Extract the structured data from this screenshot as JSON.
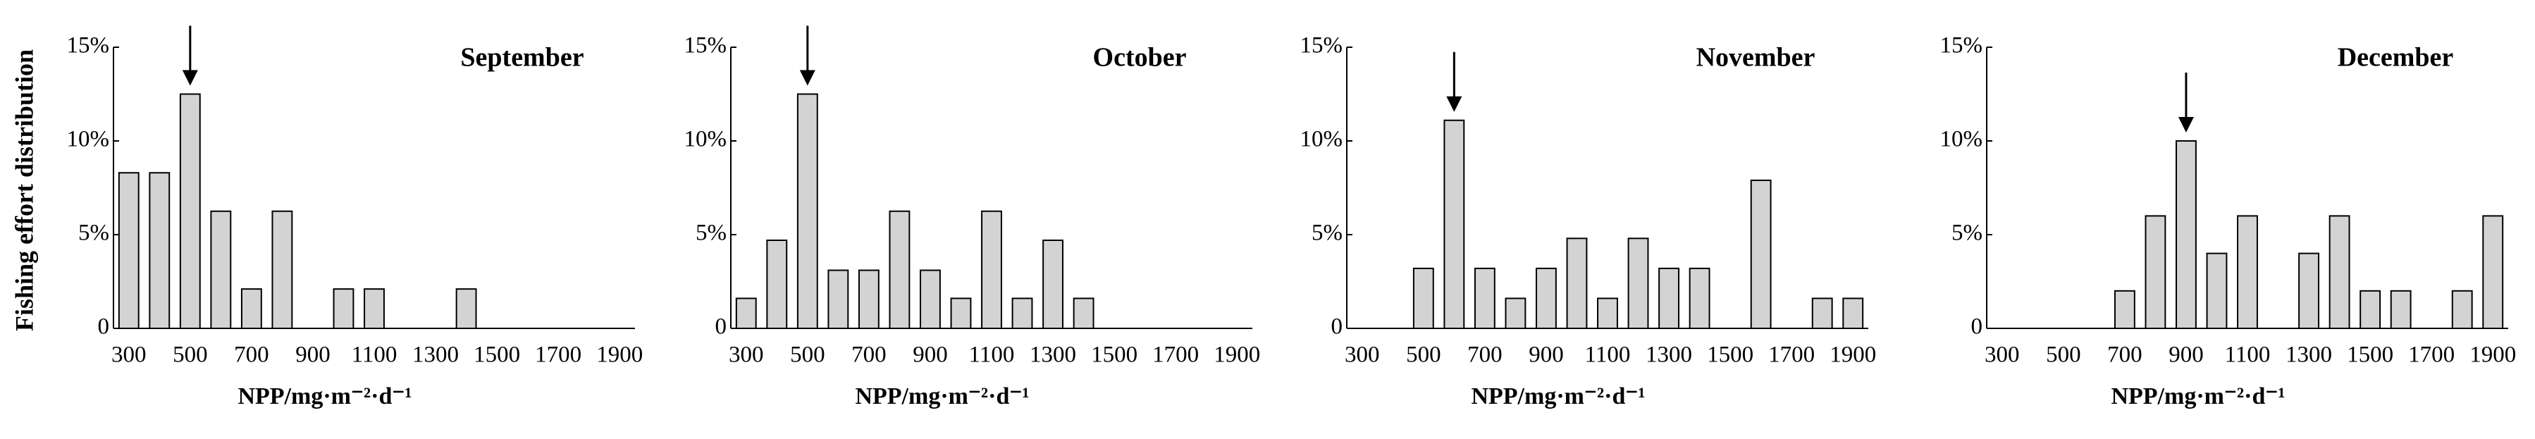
{
  "chart_data": [
    {
      "type": "bar",
      "title": "September",
      "y_label": "Fishing effort distribution",
      "x_label": "NPP/mg·m⁻²·d⁻¹",
      "categories": [
        "300",
        null,
        "500",
        null,
        "700",
        null,
        "900",
        null,
        "1100",
        null,
        "1300",
        null,
        "1500",
        null,
        "1700",
        null,
        "1900"
      ],
      "values": [
        8.3,
        8.3,
        12.5,
        6.25,
        2.1,
        6.25,
        0,
        2.1,
        2.1,
        0,
        0,
        2.1,
        0,
        0,
        0,
        0,
        0
      ],
      "color": "#d3d3d3",
      "ylim": [
        0,
        15
      ],
      "yticks": [
        0,
        {
          "value": 5,
          "label": "5%"
        },
        {
          "value": 10,
          "label": "10%"
        },
        {
          "value": 15,
          "label": "15%"
        }
      ]
    },
    {
      "type": "bar",
      "title": "October",
      "x_label": "NPP/mg·m⁻²·d⁻¹",
      "categories": [
        "300",
        null,
        "500",
        null,
        "700",
        null,
        "900",
        null,
        "1100",
        null,
        "1300",
        null,
        "1500",
        null,
        "1700",
        null,
        "1900"
      ],
      "values": [
        1.6,
        4.7,
        12.5,
        3.1,
        3.1,
        6.25,
        3.1,
        1.6,
        6.25,
        1.6,
        4.7,
        1.6,
        0,
        0,
        0,
        0,
        0
      ],
      "color": "#d3d3d3",
      "ylim": [
        0,
        15
      ],
      "yticks": [
        0,
        {
          "value": 5,
          "label": "5%"
        },
        {
          "value": 10,
          "label": "10%"
        },
        {
          "value": 15,
          "label": "15%"
        }
      ]
    },
    {
      "type": "bar",
      "title": "November",
      "x_label": "NPP/mg·m⁻²·d⁻¹",
      "categories": [
        "300",
        null,
        "500",
        null,
        "700",
        null,
        "900",
        null,
        "1100",
        null,
        "1300",
        null,
        "1500",
        null,
        "1700",
        null,
        "1900"
      ],
      "values": [
        0,
        0,
        3.2,
        11.1,
        3.2,
        1.6,
        3.2,
        4.8,
        1.6,
        4.8,
        3.2,
        3.2,
        0,
        7.9,
        0,
        1.6,
        1.6
      ],
      "color": "#d3d3d3",
      "ylim": [
        0,
        15
      ],
      "yticks": [
        0,
        {
          "value": 5,
          "label": "5%"
        },
        {
          "value": 10,
          "label": "10%"
        },
        {
          "value": 15,
          "label": "15%"
        }
      ]
    },
    {
      "type": "bar",
      "title": "December",
      "x_label": "NPP/mg·m⁻²·d⁻¹",
      "categories": [
        "300",
        null,
        "500",
        null,
        "700",
        null,
        "900",
        null,
        "1100",
        null,
        "1300",
        null,
        "1500",
        null,
        "1700",
        null,
        "1900"
      ],
      "values": [
        0,
        0,
        0,
        0,
        2,
        6,
        10,
        4,
        6,
        0,
        4,
        6,
        2,
        2,
        0,
        2,
        6
      ],
      "color": "#d3d3d3",
      "ylim": [
        0,
        15
      ],
      "yticks": [
        0,
        {
          "value": 5,
          "label": "5%"
        },
        {
          "value": 10,
          "label": "10%"
        },
        {
          "value": 15,
          "label": "15%"
        }
      ]
    }
  ]
}
